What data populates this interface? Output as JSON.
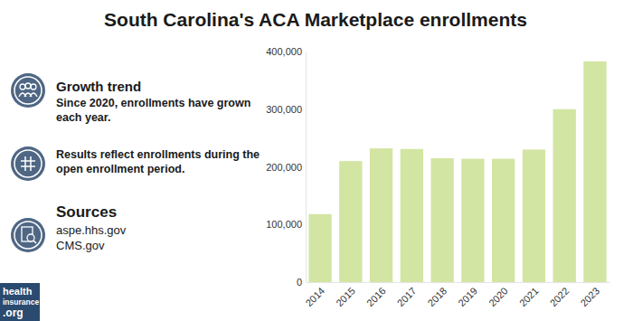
{
  "chart_data": {
    "type": "bar",
    "title": "South Carolina's ACA Marketplace enrollments",
    "categories": [
      "2014",
      "2015",
      "2016",
      "2017",
      "2018",
      "2019",
      "2020",
      "2021",
      "2022",
      "2023"
    ],
    "values": [
      118000,
      210000,
      232000,
      231000,
      215000,
      214000,
      214000,
      230000,
      300000,
      383000
    ],
    "color": "#d3e5a3",
    "ylim": [
      0,
      400000
    ],
    "yticks": [
      0,
      {
        "value": 100000,
        "label": "100,000"
      },
      {
        "value": 200000,
        "label": "200,000"
      },
      {
        "value": 300000,
        "label": "300,000"
      },
      {
        "value": 400000,
        "label": "400,000"
      }
    ],
    "grid": false,
    "annotations": [
      {
        "title": "Growth trend",
        "text": [
          "Since 2020, enrollments have grown",
          "each year."
        ]
      },
      {
        "text": [
          "Results reflect enrollments during the",
          "open enrollment period."
        ]
      },
      {
        "title": "Sources",
        "text": [
          "aspe.hhs.gov",
          "CMS.gov"
        ]
      }
    ],
    "logo": [
      "health",
      "insurance",
      ".org"
    ]
  }
}
